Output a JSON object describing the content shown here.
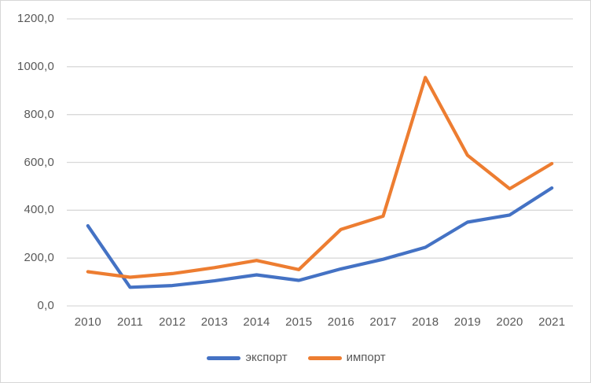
{
  "chart": {
    "background_color": "#ffffff",
    "border_color": "#d7d7d7",
    "grid_color": "#d9d9d9",
    "tick_label_color": "#595959"
  },
  "chart_data": {
    "type": "line",
    "title": "",
    "categories": [
      "2010",
      "2011",
      "2012",
      "2013",
      "2014",
      "2015",
      "2016",
      "2017",
      "2018",
      "2019",
      "2020",
      "2021"
    ],
    "series": [
      {
        "name": "экспорт",
        "color": "#4472C4",
        "values": [
          335,
          78,
          85,
          105,
          130,
          107,
          155,
          195,
          245,
          350,
          380,
          493
        ]
      },
      {
        "name": "импорт",
        "color": "#ED7D31",
        "values": [
          143,
          120,
          135,
          160,
          190,
          152,
          320,
          375,
          955,
          630,
          490,
          595
        ]
      }
    ],
    "ylim": [
      0,
      1200
    ],
    "ytick_step": 200,
    "ytick_labels": [
      "0,0",
      "200,0",
      "400,0",
      "600,0",
      "800,0",
      "1000,0",
      "1200,0"
    ],
    "number_format": "decimal-comma",
    "grid": true,
    "legend_position": "bottom"
  }
}
